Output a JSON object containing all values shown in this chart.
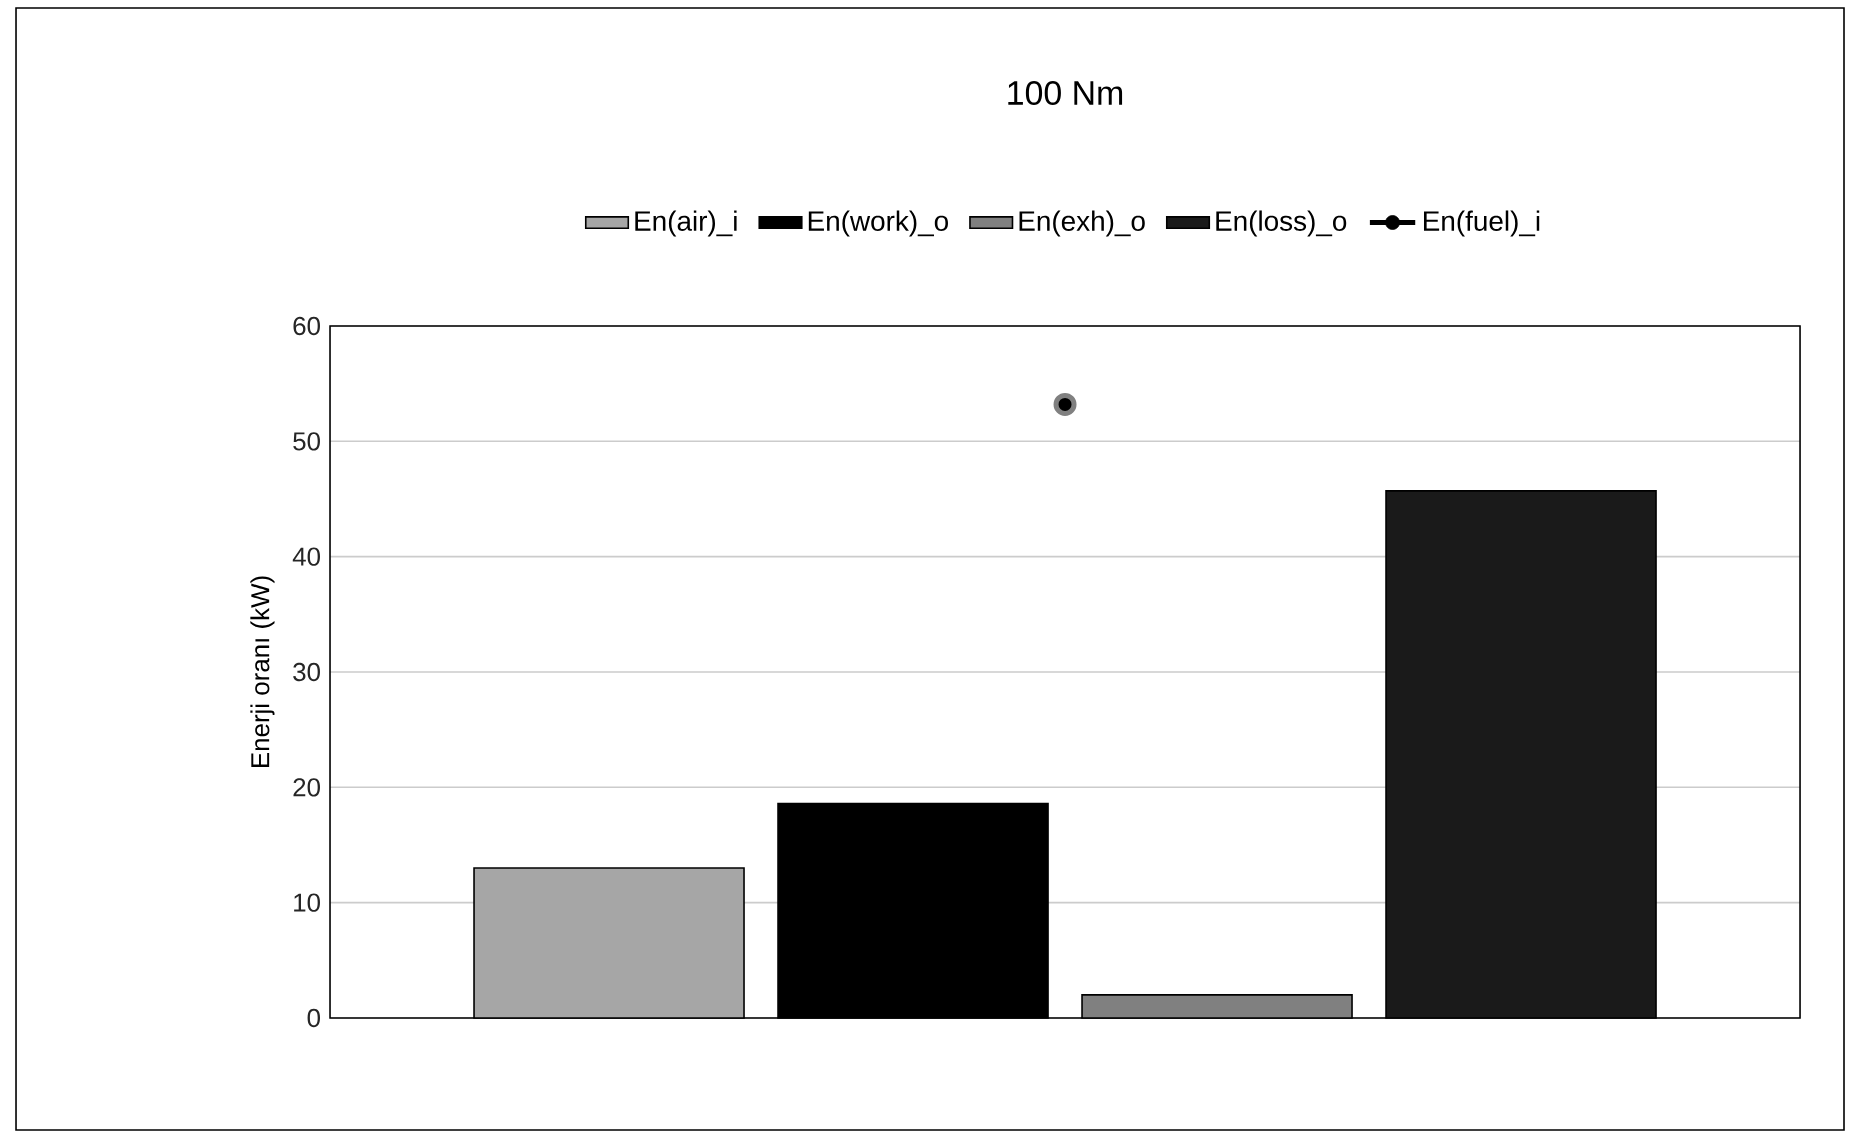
{
  "chart_data": {
    "type": "bar",
    "title": "100 Nm",
    "ylabel": "Enerji oranı (kW)",
    "categories": [
      null
    ],
    "series": [
      {
        "name": "En(air)_i",
        "color": "#a6a6a6",
        "values": [
          13
        ]
      },
      {
        "name": "En(work)_o",
        "color": "#000000",
        "values": [
          18.6
        ]
      },
      {
        "name": "En(exh)_o",
        "color": "#808080",
        "values": [
          2
        ]
      },
      {
        "name": "En(loss)_o",
        "color": "#1a1a1a",
        "values": [
          45.7
        ]
      },
      {
        "name": "En(fuel)_i",
        "type": "line",
        "color": "#000000",
        "marker": "circle",
        "values": [
          53.2
        ]
      }
    ],
    "ylim": [
      0,
      60
    ],
    "yticks": [
      0,
      10,
      20,
      30,
      40,
      50,
      60
    ],
    "grid": "y",
    "legend": "top"
  }
}
